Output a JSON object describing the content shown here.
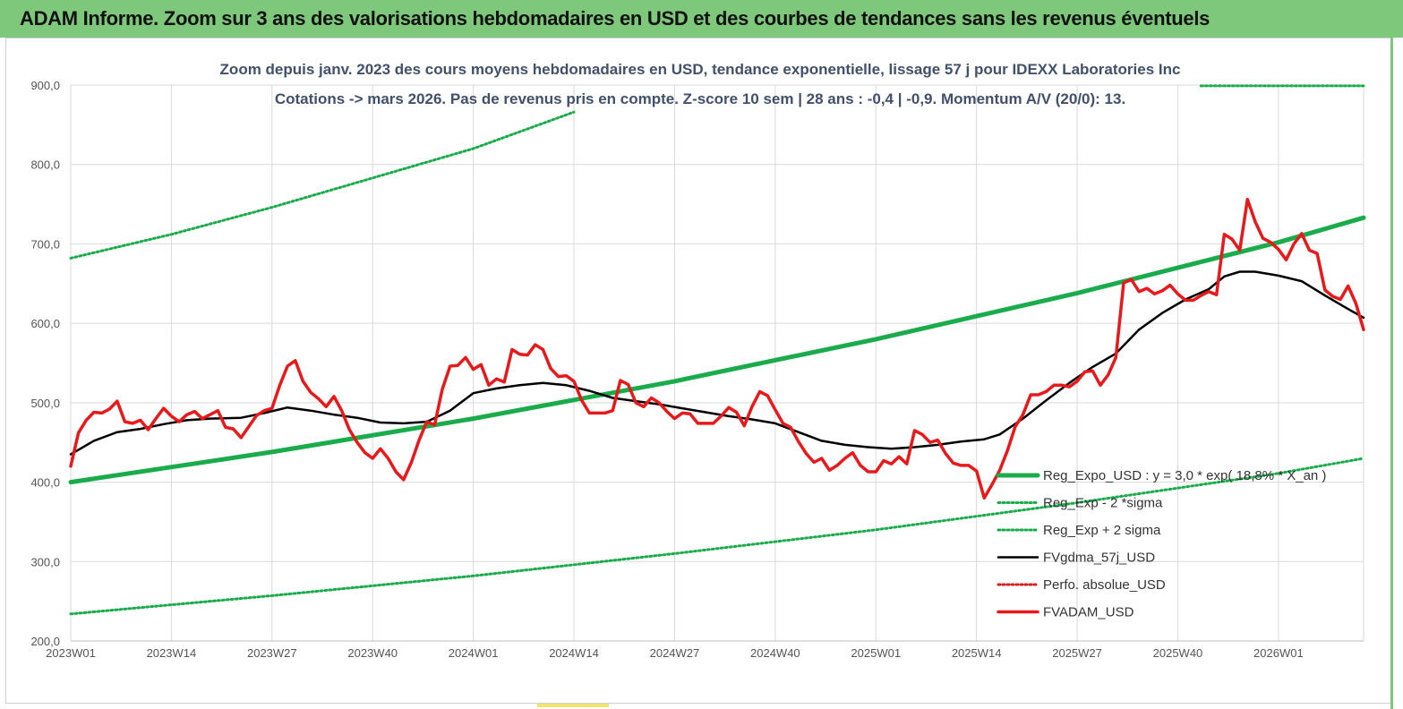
{
  "header": {
    "title": "ADAM Informe. Zoom sur 3 ans des valorisations hebdomadaires en USD et des courbes de tendances sans les revenus éventuels"
  },
  "chart_data": {
    "type": "line",
    "subtitle_line1": "Zoom depuis janv. 2023 des cours moyens hebdomadaires en USD, tendance exponentielle, lissage 57 j pour IDEXX Laboratories Inc",
    "subtitle_line2": "Cotations -> mars 2026. Pas de revenus pris en compte. Z-score 10 sem | 28 ans : -0,4 | -0,9. Momentum A/V (20/0): 13.",
    "ylim": [
      200,
      900
    ],
    "yticks": [
      "200,0",
      "300,0",
      "400,0",
      "500,0",
      "600,0",
      "700,0",
      "800,0",
      "900,0"
    ],
    "xlim": [
      0,
      167
    ],
    "xticks": [
      {
        "label": "2023W01",
        "pos": 0
      },
      {
        "label": "2023W14",
        "pos": 13
      },
      {
        "label": "2023W27",
        "pos": 26
      },
      {
        "label": "2023W40",
        "pos": 39
      },
      {
        "label": "2024W01",
        "pos": 52
      },
      {
        "label": "2024W14",
        "pos": 65
      },
      {
        "label": "2024W27",
        "pos": 78
      },
      {
        "label": "2024W40",
        "pos": 91
      },
      {
        "label": "2025W01",
        "pos": 104
      },
      {
        "label": "2025W14",
        "pos": 117
      },
      {
        "label": "2025W27",
        "pos": 130
      },
      {
        "label": "2025W40",
        "pos": 143
      },
      {
        "label": "2026W01",
        "pos": 156
      }
    ],
    "grid": "vertical and horizontal",
    "legend_position": "bottom-right",
    "series": [
      {
        "name": "Reg_Expo_USD : y = 3,0 * exp( 18,8% * X_an )",
        "color": "#1aab4b",
        "style": "thick",
        "points": [
          [
            0,
            400
          ],
          [
            26,
            438
          ],
          [
            52,
            480
          ],
          [
            78,
            527
          ],
          [
            104,
            580
          ],
          [
            130,
            638
          ],
          [
            156,
            702
          ],
          [
            167,
            733
          ]
        ]
      },
      {
        "name": "Reg_Exp - 2 *sigma",
        "color": "#1aab4b",
        "style": "dotted",
        "points": [
          [
            0,
            234
          ],
          [
            26,
            257
          ],
          [
            52,
            282
          ],
          [
            78,
            310
          ],
          [
            104,
            340
          ],
          [
            130,
            374
          ],
          [
            156,
            411
          ],
          [
            167,
            430
          ]
        ]
      },
      {
        "name": "Reg_Exp + 2 sigma",
        "color": "#1aab4b",
        "style": "dotted",
        "points": [
          [
            0,
            682
          ],
          [
            13,
            712
          ],
          [
            26,
            746
          ],
          [
            39,
            783
          ],
          [
            52,
            820
          ],
          [
            65,
            866
          ]
        ],
        "points_top": [
          [
            146,
            899
          ],
          [
            167,
            899
          ]
        ]
      },
      {
        "name": "FVgdma_57j_USD",
        "color": "#000000",
        "style": "solid",
        "points": [
          [
            0,
            435
          ],
          [
            3,
            452
          ],
          [
            6,
            463
          ],
          [
            9,
            467
          ],
          [
            12,
            473
          ],
          [
            15,
            478
          ],
          [
            18,
            480
          ],
          [
            22,
            481
          ],
          [
            25,
            487
          ],
          [
            28,
            494
          ],
          [
            31,
            490
          ],
          [
            34,
            485
          ],
          [
            37,
            481
          ],
          [
            40,
            475
          ],
          [
            43,
            474
          ],
          [
            46,
            476
          ],
          [
            49,
            490
          ],
          [
            52,
            512
          ],
          [
            55,
            518
          ],
          [
            58,
            522
          ],
          [
            61,
            525
          ],
          [
            64,
            522
          ],
          [
            67,
            515
          ],
          [
            70,
            506
          ],
          [
            73,
            502
          ],
          [
            76,
            498
          ],
          [
            79,
            493
          ],
          [
            82,
            488
          ],
          [
            85,
            483
          ],
          [
            88,
            479
          ],
          [
            91,
            474
          ],
          [
            94,
            463
          ],
          [
            97,
            452
          ],
          [
            100,
            447
          ],
          [
            103,
            444
          ],
          [
            106,
            442
          ],
          [
            109,
            444
          ],
          [
            112,
            447
          ],
          [
            115,
            451
          ],
          [
            118,
            454
          ],
          [
            120,
            460
          ],
          [
            123,
            480
          ],
          [
            126,
            503
          ],
          [
            129,
            525
          ],
          [
            132,
            545
          ],
          [
            135,
            562
          ],
          [
            138,
            592
          ],
          [
            141,
            613
          ],
          [
            144,
            630
          ],
          [
            147,
            643
          ],
          [
            149,
            659
          ],
          [
            151,
            665
          ],
          [
            153,
            665
          ],
          [
            156,
            660
          ],
          [
            159,
            653
          ],
          [
            162,
            635
          ],
          [
            165,
            618
          ],
          [
            167,
            607
          ]
        ]
      },
      {
        "name": "Perfo. absolue_USD",
        "color": "#d62020",
        "style": "dotted",
        "points": []
      },
      {
        "name": "FVADAM_USD",
        "color": "#e8191b",
        "style": "thick",
        "points": [
          [
            0,
            420
          ],
          [
            1,
            462
          ],
          [
            2,
            478
          ],
          [
            3,
            488
          ],
          [
            4,
            487
          ],
          [
            5,
            492
          ],
          [
            6,
            502
          ],
          [
            7,
            476
          ],
          [
            8,
            474
          ],
          [
            9,
            478
          ],
          [
            10,
            466
          ],
          [
            11,
            480
          ],
          [
            12,
            493
          ],
          [
            13,
            483
          ],
          [
            14,
            476
          ],
          [
            15,
            485
          ],
          [
            16,
            489
          ],
          [
            17,
            480
          ],
          [
            18,
            485
          ],
          [
            19,
            490
          ],
          [
            20,
            469
          ],
          [
            21,
            467
          ],
          [
            22,
            456
          ],
          [
            23,
            470
          ],
          [
            24,
            484
          ],
          [
            25,
            490
          ],
          [
            26,
            493
          ],
          [
            27,
            522
          ],
          [
            28,
            546
          ],
          [
            29,
            553
          ],
          [
            30,
            527
          ],
          [
            31,
            513
          ],
          [
            32,
            505
          ],
          [
            33,
            495
          ],
          [
            34,
            508
          ],
          [
            35,
            490
          ],
          [
            36,
            466
          ],
          [
            37,
            450
          ],
          [
            38,
            437
          ],
          [
            39,
            430
          ],
          [
            40,
            442
          ],
          [
            41,
            430
          ],
          [
            42,
            413
          ],
          [
            43,
            403
          ],
          [
            44,
            425
          ],
          [
            45,
            453
          ],
          [
            46,
            476
          ],
          [
            47,
            472
          ],
          [
            48,
            517
          ],
          [
            49,
            546
          ],
          [
            50,
            547
          ],
          [
            51,
            557
          ],
          [
            52,
            542
          ],
          [
            53,
            548
          ],
          [
            54,
            522
          ],
          [
            55,
            530
          ],
          [
            56,
            526
          ],
          [
            57,
            567
          ],
          [
            58,
            561
          ],
          [
            59,
            560
          ],
          [
            60,
            573
          ],
          [
            61,
            567
          ],
          [
            62,
            543
          ],
          [
            63,
            533
          ],
          [
            64,
            534
          ],
          [
            65,
            527
          ],
          [
            66,
            503
          ],
          [
            67,
            487
          ],
          [
            68,
            487
          ],
          [
            69,
            487
          ],
          [
            70,
            490
          ],
          [
            71,
            528
          ],
          [
            72,
            523
          ],
          [
            73,
            500
          ],
          [
            74,
            495
          ],
          [
            75,
            506
          ],
          [
            76,
            500
          ],
          [
            77,
            489
          ],
          [
            78,
            480
          ],
          [
            79,
            487
          ],
          [
            80,
            486
          ],
          [
            81,
            474
          ],
          [
            82,
            474
          ],
          [
            83,
            474
          ],
          [
            84,
            483
          ],
          [
            85,
            494
          ],
          [
            86,
            488
          ],
          [
            87,
            471
          ],
          [
            88,
            495
          ],
          [
            89,
            514
          ],
          [
            90,
            509
          ],
          [
            91,
            491
          ],
          [
            92,
            474
          ],
          [
            93,
            469
          ],
          [
            94,
            451
          ],
          [
            95,
            436
          ],
          [
            96,
            425
          ],
          [
            97,
            430
          ],
          [
            98,
            415
          ],
          [
            99,
            421
          ],
          [
            100,
            430
          ],
          [
            101,
            437
          ],
          [
            102,
            421
          ],
          [
            103,
            413
          ],
          [
            104,
            413
          ],
          [
            105,
            427
          ],
          [
            106,
            423
          ],
          [
            107,
            432
          ],
          [
            108,
            423
          ],
          [
            109,
            465
          ],
          [
            110,
            460
          ],
          [
            111,
            450
          ],
          [
            112,
            453
          ],
          [
            113,
            436
          ],
          [
            114,
            424
          ],
          [
            115,
            421
          ],
          [
            116,
            421
          ],
          [
            117,
            414
          ],
          [
            118,
            380
          ],
          [
            119,
            397
          ],
          [
            120,
            415
          ],
          [
            121,
            440
          ],
          [
            122,
            470
          ],
          [
            123,
            485
          ],
          [
            124,
            510
          ],
          [
            125,
            510
          ],
          [
            126,
            514
          ],
          [
            127,
            522
          ],
          [
            128,
            522
          ],
          [
            129,
            520
          ],
          [
            130,
            527
          ],
          [
            131,
            539
          ],
          [
            132,
            540
          ],
          [
            133,
            522
          ],
          [
            134,
            535
          ],
          [
            135,
            557
          ],
          [
            136,
            651
          ],
          [
            137,
            655
          ],
          [
            138,
            640
          ],
          [
            139,
            644
          ],
          [
            140,
            637
          ],
          [
            141,
            641
          ],
          [
            142,
            648
          ],
          [
            143,
            637
          ],
          [
            144,
            629
          ],
          [
            145,
            629
          ],
          [
            146,
            635
          ],
          [
            147,
            640
          ],
          [
            148,
            636
          ],
          [
            149,
            712
          ],
          [
            150,
            706
          ],
          [
            151,
            692
          ],
          [
            152,
            756
          ],
          [
            153,
            728
          ],
          [
            154,
            707
          ],
          [
            155,
            702
          ],
          [
            156,
            693
          ],
          [
            157,
            680
          ],
          [
            158,
            700
          ],
          [
            159,
            713
          ],
          [
            160,
            692
          ],
          [
            161,
            688
          ],
          [
            162,
            642
          ],
          [
            163,
            634
          ],
          [
            164,
            630
          ],
          [
            165,
            647
          ],
          [
            166,
            625
          ],
          [
            167,
            592
          ]
        ]
      }
    ]
  }
}
